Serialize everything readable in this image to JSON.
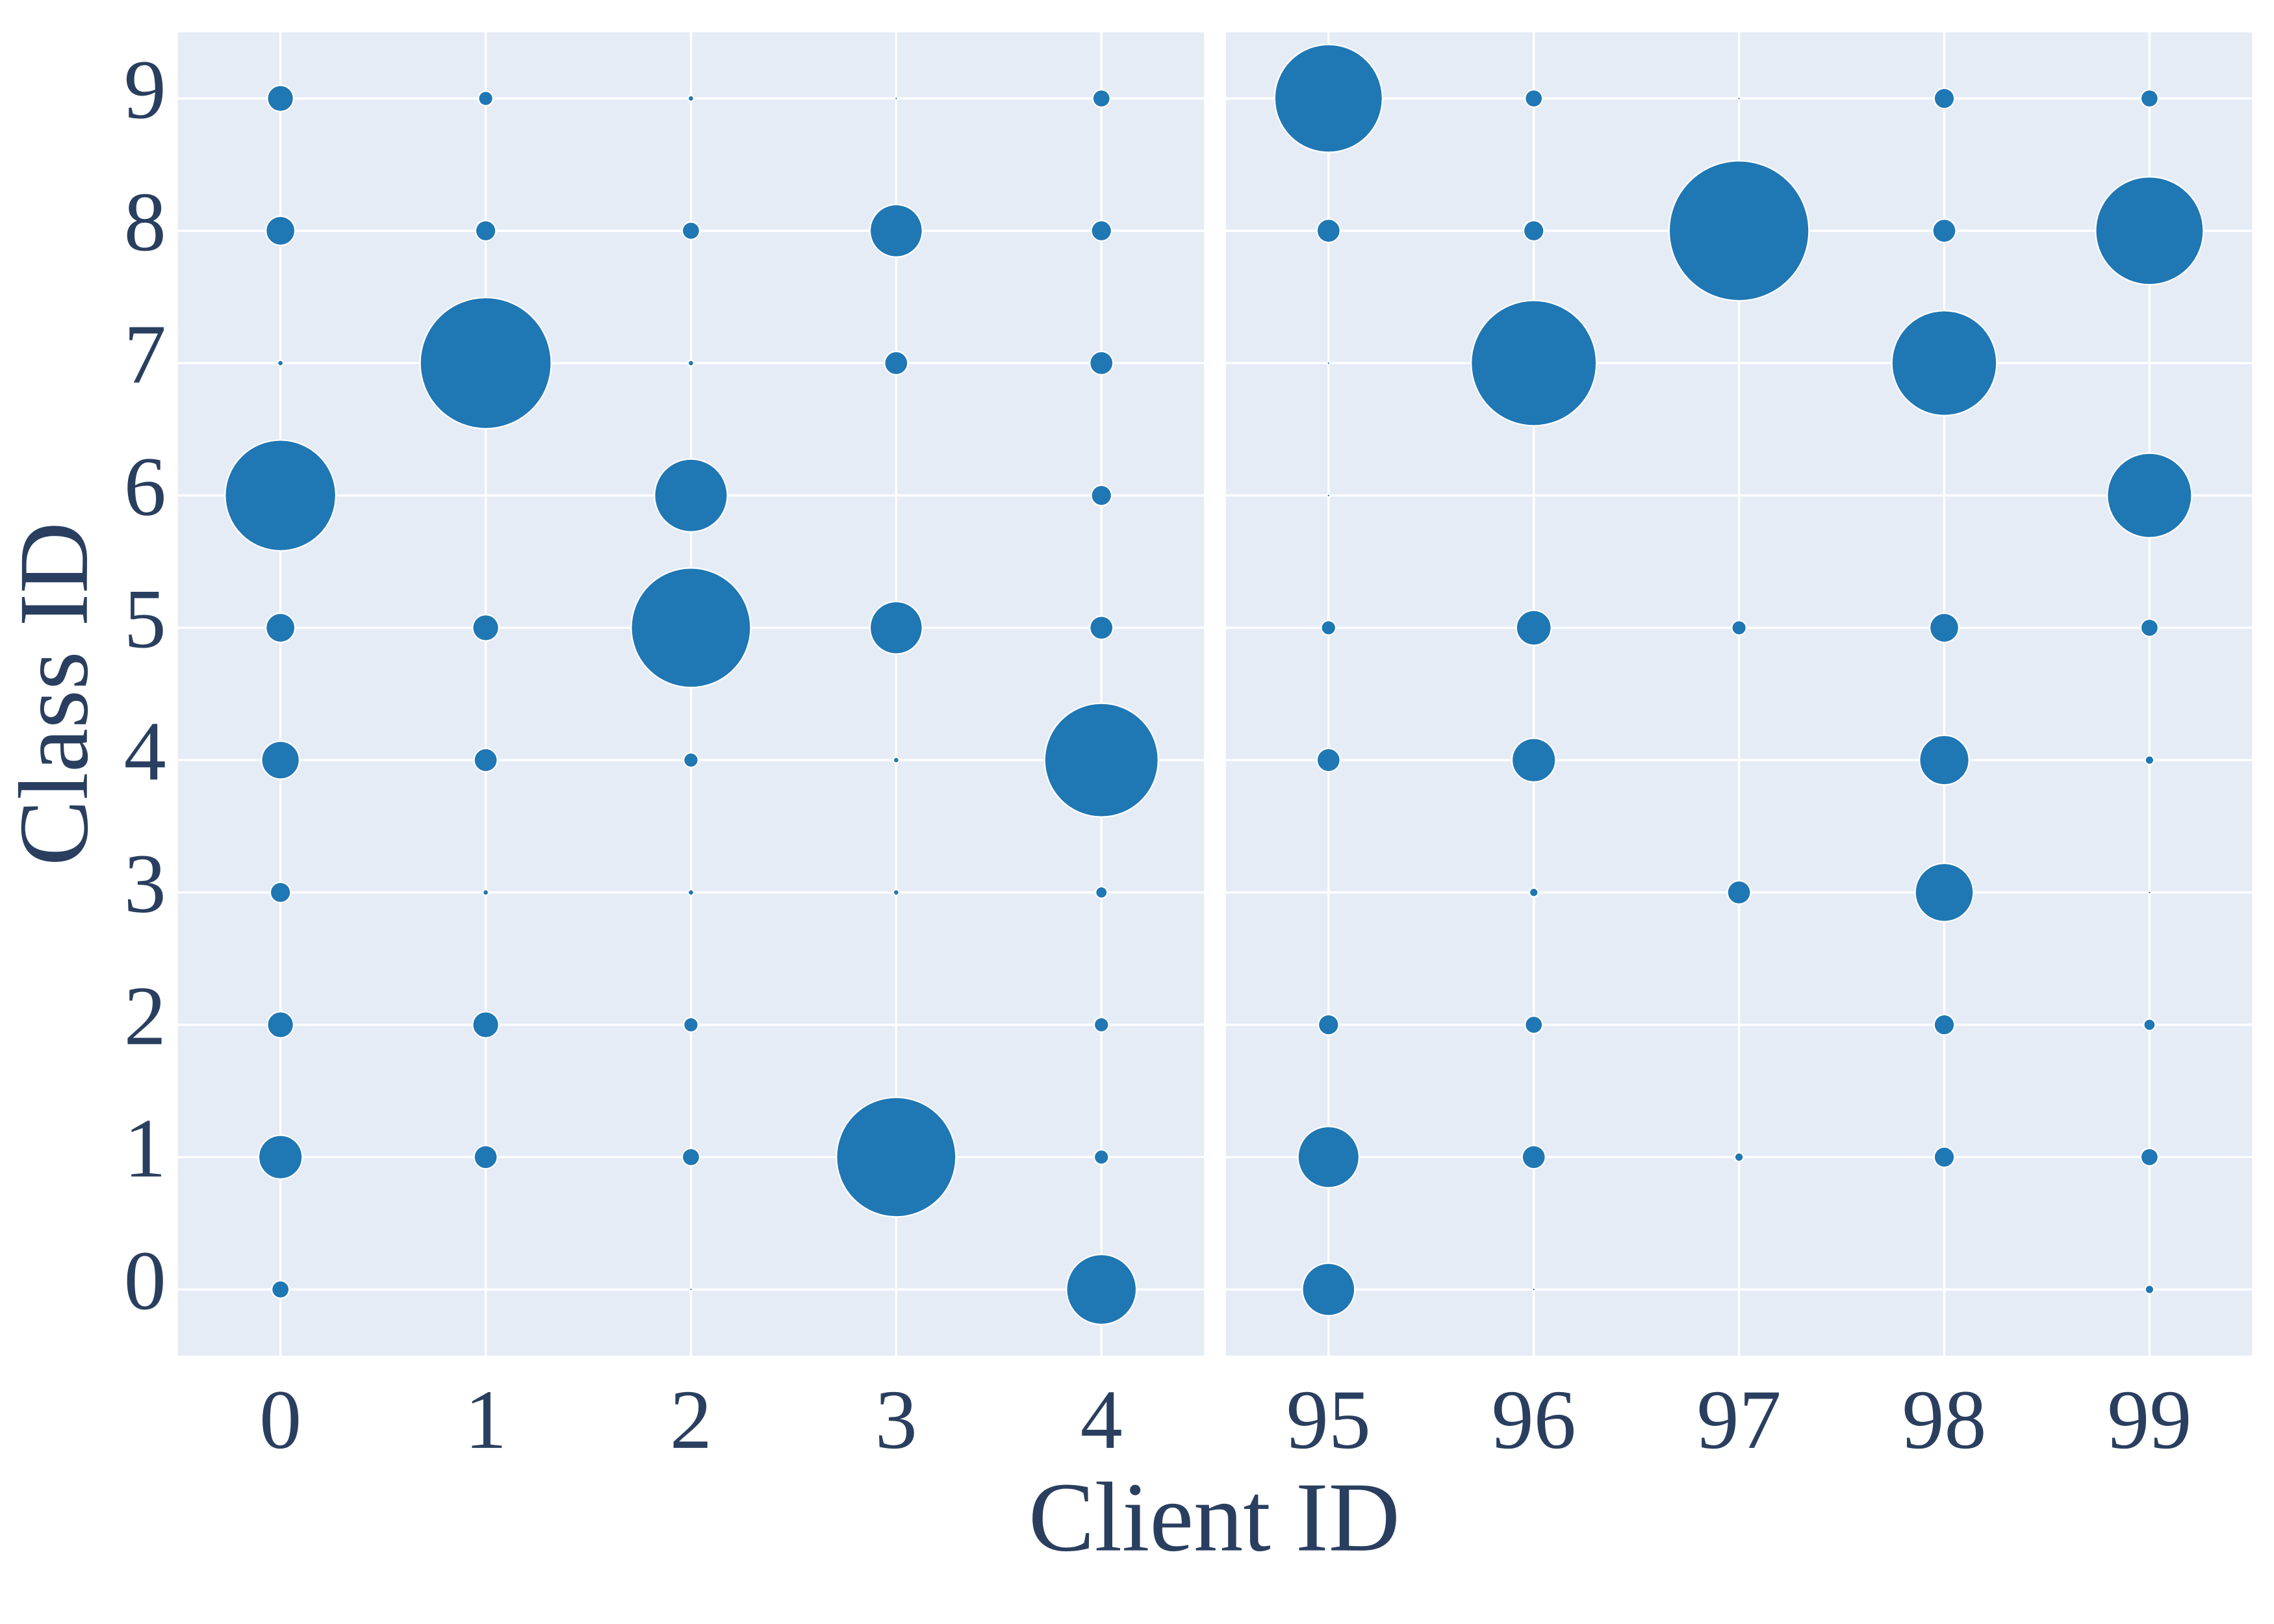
{
  "chart_data": {
    "type": "scatter",
    "xlabel": "Client ID",
    "ylabel": "Class ID",
    "color": "#1f77b4",
    "grid": true,
    "ylim": [
      -0.5,
      9.5
    ],
    "yticks": [
      0,
      1,
      2,
      3,
      4,
      5,
      6,
      7,
      8,
      9
    ],
    "panels": [
      {
        "xlim": [
          -0.5,
          4.5
        ],
        "xticks": [
          0,
          1,
          2,
          3,
          4
        ],
        "x": [
          0,
          0,
          0,
          0,
          0,
          0,
          0,
          0,
          0,
          0,
          1,
          1,
          1,
          1,
          1,
          1,
          1,
          1,
          2,
          2,
          2,
          2,
          2,
          2,
          2,
          2,
          2,
          2,
          3,
          3,
          3,
          3,
          3,
          3,
          3,
          4,
          4,
          4,
          4,
          4,
          4,
          4,
          4,
          4,
          4
        ],
        "y": [
          9,
          8,
          7,
          6,
          5,
          4,
          3,
          2,
          1,
          0,
          9,
          8,
          7,
          5,
          4,
          3,
          2,
          1,
          9,
          8,
          7,
          6,
          5,
          4,
          3,
          2,
          1,
          0,
          9,
          8,
          7,
          5,
          4,
          3,
          1,
          9,
          8,
          7,
          6,
          5,
          4,
          3,
          2,
          1,
          0
        ],
        "sizes": [
          81,
          100,
          4,
          1444,
          100,
          169,
          49,
          81,
          225,
          36,
          25,
          49,
          2025,
          81,
          64,
          4,
          81,
          64,
          4,
          36,
          4,
          625,
          1681,
          25,
          4,
          25,
          36,
          1,
          1,
          324,
          64,
          324,
          4,
          4,
          1681,
          36,
          49,
          64,
          49,
          64,
          1521,
          16,
          25,
          25,
          576
        ]
      },
      {
        "xlim": [
          94.5,
          99.5
        ],
        "xticks": [
          95,
          96,
          97,
          98,
          99
        ],
        "x": [
          95,
          95,
          95,
          95,
          95,
          95,
          95,
          95,
          95,
          96,
          96,
          96,
          96,
          96,
          96,
          96,
          96,
          96,
          97,
          97,
          97,
          97,
          97,
          98,
          98,
          98,
          98,
          98,
          98,
          98,
          98,
          99,
          99,
          99,
          99,
          99,
          99,
          99,
          99,
          99
        ],
        "y": [
          9,
          8,
          7,
          6,
          5,
          4,
          2,
          1,
          0,
          9,
          8,
          7,
          5,
          4,
          3,
          2,
          1,
          0,
          9,
          8,
          5,
          3,
          1,
          9,
          8,
          7,
          5,
          4,
          3,
          2,
          1,
          9,
          8,
          6,
          5,
          4,
          3,
          2,
          1,
          0
        ],
        "sizes": [
          1369,
          64,
          1,
          1,
          25,
          64,
          49,
          441,
          324,
          36,
          49,
          1849,
          144,
          225,
          9,
          36,
          64,
          1,
          1,
          2304,
          25,
          64,
          9,
          49,
          64,
          1296,
          100,
          289,
          400,
          49,
          49,
          36,
          1369,
          841,
          36,
          9,
          1,
          16,
          36,
          9
        ]
      }
    ]
  }
}
